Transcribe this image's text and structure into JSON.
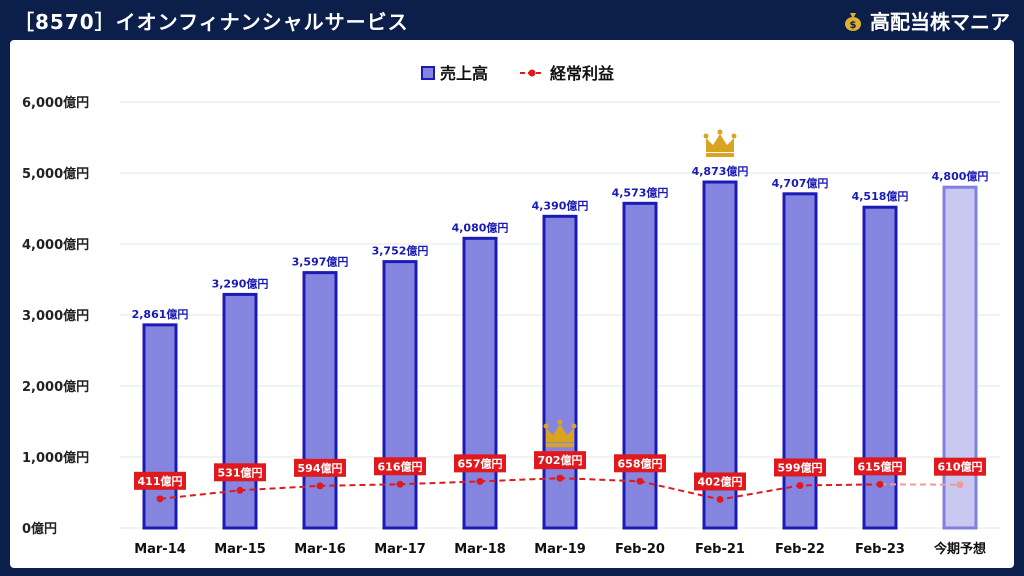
{
  "header": {
    "title": "［8570］イオンフィナンシャルサービス",
    "brand": "高配当株マニア",
    "brand_icon": "money-bag-icon"
  },
  "colors": {
    "background": "#0b1f4a",
    "bar_fill": "#8585e0",
    "bar_stroke": "#1a1ab5",
    "forecast_fill": "#c8c8f0",
    "forecast_stroke": "#8080e0",
    "bar_label": "#1a1ab5",
    "line": "#e0191e",
    "crown": "#d9a520"
  },
  "chart_data": {
    "type": "bar",
    "title": "",
    "xlabel": "",
    "ylabel": "",
    "ylim": [
      0,
      6000
    ],
    "yticks": [
      0,
      1000,
      2000,
      3000,
      4000,
      5000,
      6000
    ],
    "ytick_labels": [
      "0億円",
      "1,000億円",
      "2,000億円",
      "3,000億円",
      "4,000億円",
      "5,000億円",
      "6,000億円"
    ],
    "grid": true,
    "legend_position": "top-center",
    "categories": [
      "Mar-14",
      "Mar-15",
      "Mar-16",
      "Mar-17",
      "Mar-18",
      "Mar-19",
      "Feb-20",
      "Feb-21",
      "Feb-22",
      "Feb-23",
      "今期予想"
    ],
    "series": [
      {
        "name": "売上高",
        "kind": "bar",
        "values": [
          2861,
          3290,
          3597,
          3752,
          4080,
          4390,
          4573,
          4873,
          4707,
          4518,
          4800
        ],
        "labels": [
          "2,861億円",
          "3,290億円",
          "3,597億円",
          "3,752億円",
          "4,080億円",
          "4,390億円",
          "4,573億円",
          "4,873億円",
          "4,707億円",
          "4,518億円",
          "4,800億円"
        ]
      },
      {
        "name": "経常利益",
        "kind": "line",
        "values": [
          411,
          531,
          594,
          616,
          657,
          702,
          658,
          402,
          599,
          615,
          610
        ],
        "labels": [
          "411億円",
          "531億円",
          "594億円",
          "616億円",
          "657億円",
          "702億円",
          "658億円",
          "402億円",
          "599億円",
          "615億円",
          "610億円"
        ]
      }
    ],
    "crowns": [
      {
        "series": "売上高",
        "category": "Feb-21",
        "icon": "crown-icon"
      },
      {
        "series": "経常利益",
        "category": "Mar-19",
        "icon": "crown-icon"
      }
    ]
  }
}
